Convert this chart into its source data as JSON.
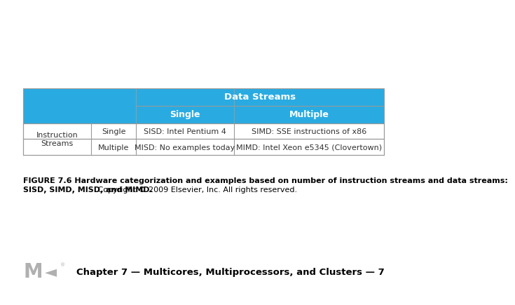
{
  "bg_color": "#ffffff",
  "header_blue": "#29abe2",
  "border_color": "#999999",
  "table": {
    "header1_text": "Data Streams",
    "header2_text": "Single",
    "header3_text": "Multiple",
    "row_label1": "Instruction\nStreams",
    "col_label1": "Single",
    "col_label2": "Multiple",
    "cell_r1c1": "SISD: Intel Pentium 4",
    "cell_r1c2": "SIMD: SSE instructions of x86",
    "cell_r2c1": "MISD: No examples today",
    "cell_r2c2": "MIMD: Intel Xeon e5345 (Clovertown)"
  },
  "line1_bold": "FIGURE 7.6 Hardware categorization and examples based on number of instruction streams and data streams:",
  "line2_bold": "SISD, SIMD, MISD, and MIMD.",
  "line2_normal": " Copyright © 2009 Elsevier, Inc. All rights reserved.",
  "footer_text": "Chapter 7 — Multicores, Multiprocessors, and Clusters — 7",
  "header_text_color": "#ffffff",
  "cell_text_color": "#333333",
  "caption_fontsize": 8.0,
  "footer_fontsize": 9.5,
  "c0": 0.042,
  "c1": 0.215,
  "c2": 0.33,
  "c3": 0.58,
  "c4": 0.965,
  "r0": 0.72,
  "r1": 0.66,
  "r2": 0.6,
  "r3": 0.545,
  "r4": 0.49
}
